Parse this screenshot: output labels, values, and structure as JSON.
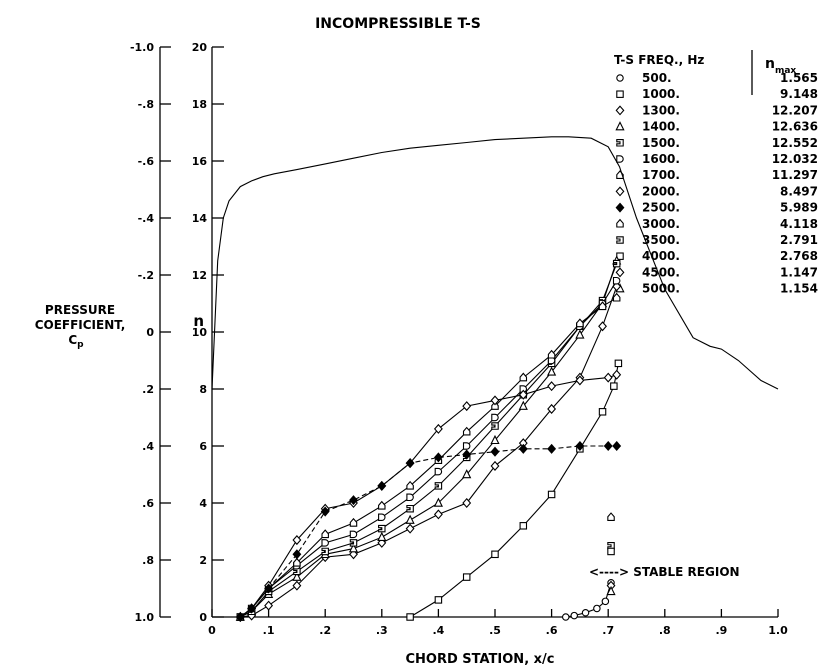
{
  "chart_data": {
    "type": "line",
    "title": "INCOMPRESSIBLE T-S",
    "xlabel": "CHORD STATION, x/c",
    "xlim": [
      0,
      1.0
    ],
    "x_ticks": [
      "0",
      ".1",
      ".2",
      ".3",
      ".4",
      ".5",
      ".6",
      ".7",
      ".8",
      ".9",
      "1.0"
    ],
    "axes": {
      "cp": {
        "label_lines": [
          "PRESSURE",
          "COEFFICIENT,",
          "C"
        ],
        "label_subscript": "p",
        "lim": [
          1.0,
          -1.0
        ],
        "ticks": [
          "-1.0",
          "-.8",
          "-.6",
          "-.4",
          "-.2",
          "0",
          ".2",
          ".4",
          ".6",
          ".8",
          "1.0"
        ]
      },
      "n": {
        "label": "n",
        "lim": [
          0,
          20
        ],
        "ticks": [
          "20",
          "18",
          "16",
          "14",
          "12",
          "10",
          "8",
          "6",
          "4",
          "2",
          "0"
        ]
      }
    },
    "pressure_curve": {
      "axis": "cp",
      "x": [
        0.0,
        0.01,
        0.02,
        0.03,
        0.05,
        0.07,
        0.09,
        0.11,
        0.15,
        0.2,
        0.25,
        0.3,
        0.35,
        0.4,
        0.45,
        0.5,
        0.55,
        0.6,
        0.63,
        0.67,
        0.7,
        0.72,
        0.75,
        0.8,
        0.85,
        0.88,
        0.9,
        0.93,
        0.97,
        1.0
      ],
      "y": [
        0.2,
        -0.25,
        -0.4,
        -0.46,
        -0.51,
        -0.53,
        -0.545,
        -0.555,
        -0.57,
        -0.59,
        -0.61,
        -0.63,
        -0.645,
        -0.655,
        -0.665,
        -0.675,
        -0.68,
        -0.685,
        -0.685,
        -0.68,
        -0.65,
        -0.58,
        -0.4,
        -0.15,
        0.02,
        0.05,
        0.06,
        0.1,
        0.17,
        0.2
      ]
    },
    "legend": {
      "placement": "top-right",
      "freq_header": "T-S FREQ., Hz",
      "nmax_header": "n",
      "nmax_subscript": "max"
    },
    "series": [
      {
        "name": "500.",
        "n_max": "1.565",
        "marker": "circle",
        "x": [
          0.625,
          0.64,
          0.66,
          0.68,
          0.695,
          0.705
        ],
        "y": [
          0.0,
          0.05,
          0.15,
          0.3,
          0.55,
          1.2
        ]
      },
      {
        "name": "1000.",
        "n_max": "9.148",
        "marker": "square",
        "x": [
          0.35,
          0.4,
          0.45,
          0.5,
          0.55,
          0.6,
          0.65,
          0.69,
          0.71,
          0.718
        ],
        "y": [
          0.0,
          0.6,
          1.4,
          2.2,
          3.2,
          4.3,
          5.9,
          7.2,
          8.1,
          8.9
        ]
      },
      {
        "name": "1300.",
        "n_max": "12.207",
        "marker": "diamond",
        "x": [
          0.05,
          0.07,
          0.1,
          0.15,
          0.2,
          0.25,
          0.3,
          0.35,
          0.4,
          0.45,
          0.5,
          0.55,
          0.6,
          0.65,
          0.69,
          0.715
        ],
        "y": [
          0.0,
          0.05,
          0.4,
          1.1,
          2.1,
          2.2,
          2.6,
          3.1,
          3.6,
          4.0,
          5.3,
          6.1,
          7.3,
          8.4,
          10.2,
          11.6
        ]
      },
      {
        "name": "1400.",
        "n_max": "12.636",
        "marker": "triangle",
        "x": [
          0.05,
          0.07,
          0.1,
          0.15,
          0.2,
          0.25,
          0.3,
          0.35,
          0.4,
          0.45,
          0.5,
          0.55,
          0.6,
          0.65,
          0.69,
          0.715
        ],
        "y": [
          0.0,
          0.2,
          0.8,
          1.4,
          2.2,
          2.4,
          2.8,
          3.4,
          4.0,
          5.0,
          6.2,
          7.4,
          8.6,
          9.9,
          11.0,
          12.5
        ]
      },
      {
        "name": "1500.",
        "n_max": "12.552",
        "marker": "notch-square",
        "x": [
          0.05,
          0.07,
          0.1,
          0.15,
          0.2,
          0.25,
          0.3,
          0.35,
          0.4,
          0.45,
          0.5,
          0.55,
          0.6,
          0.65,
          0.69,
          0.715
        ],
        "y": [
          0.0,
          0.2,
          0.9,
          1.6,
          2.3,
          2.6,
          3.1,
          3.8,
          4.6,
          5.6,
          6.7,
          7.8,
          8.9,
          10.2,
          11.1,
          12.4
        ]
      },
      {
        "name": "1600.",
        "n_max": "12.032",
        "marker": "d-shape",
        "x": [
          0.05,
          0.07,
          0.1,
          0.15,
          0.2,
          0.25,
          0.3,
          0.35,
          0.4,
          0.45,
          0.5,
          0.55,
          0.6,
          0.65,
          0.69,
          0.715
        ],
        "y": [
          0.0,
          0.3,
          1.0,
          1.8,
          2.6,
          2.9,
          3.5,
          4.2,
          5.1,
          6.0,
          7.0,
          8.0,
          9.0,
          10.2,
          11.0,
          11.8
        ]
      },
      {
        "name": "1700.",
        "n_max": "11.297",
        "marker": "house",
        "x": [
          0.05,
          0.07,
          0.1,
          0.15,
          0.2,
          0.25,
          0.3,
          0.35,
          0.4,
          0.45,
          0.5,
          0.55,
          0.6,
          0.65,
          0.69,
          0.715
        ],
        "y": [
          0.0,
          0.3,
          1.0,
          1.9,
          2.9,
          3.3,
          3.9,
          4.6,
          5.5,
          6.5,
          7.4,
          8.4,
          9.2,
          10.3,
          10.9,
          11.2
        ]
      },
      {
        "name": "2000.",
        "n_max": "8.497",
        "marker": "diamond",
        "x": [
          0.05,
          0.07,
          0.1,
          0.15,
          0.2,
          0.25,
          0.3,
          0.35,
          0.4,
          0.45,
          0.5,
          0.55,
          0.6,
          0.65,
          0.7,
          0.715
        ],
        "y": [
          0.0,
          0.3,
          1.1,
          2.7,
          3.8,
          4.0,
          4.6,
          5.4,
          6.6,
          7.4,
          7.6,
          7.8,
          8.1,
          8.3,
          8.4,
          8.5
        ]
      },
      {
        "name": "2500.",
        "n_max": "5.989",
        "marker": "filled-diamond",
        "x": [
          0.05,
          0.07,
          0.1,
          0.15,
          0.2,
          0.25,
          0.3,
          0.35,
          0.4,
          0.45,
          0.5,
          0.55,
          0.6,
          0.65,
          0.7,
          0.715
        ],
        "y": [
          0.0,
          0.3,
          1.0,
          2.2,
          3.7,
          4.1,
          4.6,
          5.4,
          5.6,
          5.7,
          5.8,
          5.9,
          5.9,
          6.0,
          6.0,
          6.0
        ]
      },
      {
        "name": "3000.",
        "n_max": "4.118",
        "marker": "house",
        "x": [
          0.705
        ],
        "y": [
          3.5
        ]
      },
      {
        "name": "3500.",
        "n_max": "2.791",
        "marker": "notch-square",
        "x": [
          0.705
        ],
        "y": [
          2.5
        ]
      },
      {
        "name": "4000.",
        "n_max": "2.768",
        "marker": "square",
        "x": [
          0.705
        ],
        "y": [
          2.3
        ]
      },
      {
        "name": "4500.",
        "n_max": "1.147",
        "marker": "diamond",
        "x": [
          0.705
        ],
        "y": [
          1.1
        ]
      },
      {
        "name": "5000.",
        "n_max": "1.154",
        "marker": "triangle",
        "x": [
          0.705
        ],
        "y": [
          0.9
        ]
      }
    ],
    "annotation": {
      "text": "<----> STABLE REGION",
      "x": 0.7,
      "y": 1.8
    }
  }
}
